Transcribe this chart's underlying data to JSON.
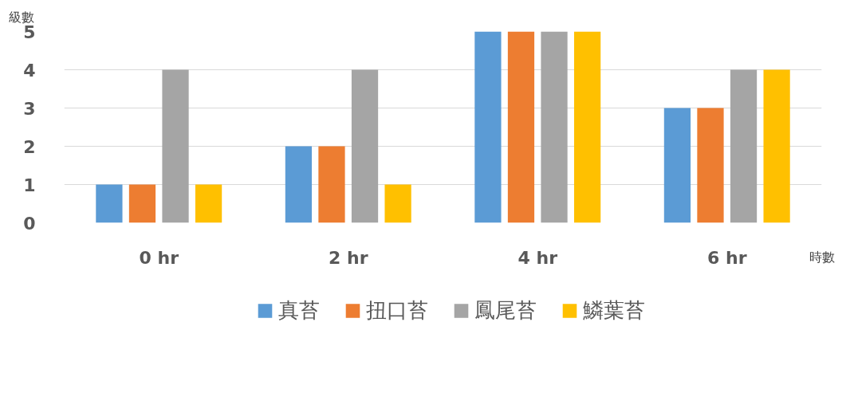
{
  "chart_data": {
    "type": "bar",
    "ylabel": "級數",
    "xlabel": "時數",
    "categories": [
      "0 hr",
      "2 hr",
      "4 hr",
      "6 hr"
    ],
    "series": [
      {
        "name": "真苔",
        "color": "#5b9bd5",
        "values": [
          1,
          2,
          5,
          3
        ]
      },
      {
        "name": "扭口苔",
        "color": "#ed7d31",
        "values": [
          1,
          2,
          5,
          3
        ]
      },
      {
        "name": "鳳尾苔",
        "color": "#a5a5a5",
        "values": [
          4,
          4,
          5,
          4
        ]
      },
      {
        "name": "鱗葉苔",
        "color": "#ffc000",
        "values": [
          1,
          1,
          5,
          4
        ]
      }
    ],
    "ylim": [
      0,
      5
    ],
    "yticks": [
      0,
      1,
      2,
      3,
      4,
      5
    ],
    "grid": "y",
    "legend": "bottom"
  }
}
